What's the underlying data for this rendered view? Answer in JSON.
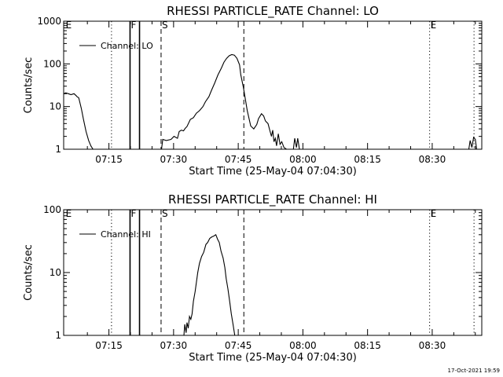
{
  "chart_data": [
    {
      "type": "line",
      "title": "RHESSI PARTICLE_RATE Channel: LO",
      "xlabel": "Start Time (25-May-04 07:04:30)",
      "ylabel": "Counts/sec",
      "yscale": "log",
      "ylim": [
        1,
        1000
      ],
      "ytick_labels": [
        "1",
        "10",
        "100",
        "1000"
      ],
      "ytick_values": [
        1,
        10,
        100,
        1000
      ],
      "xlim_min": [
        4.5,
        101.5
      ],
      "xtick_labels": [
        "07:15",
        "07:30",
        "07:45",
        "08:00",
        "08:15",
        "08:30"
      ],
      "xtick_min": [
        15,
        30,
        45,
        60,
        75,
        90
      ],
      "legend": "Channel: LO",
      "events": [
        {
          "label": "E",
          "min": 4.8,
          "style": "none"
        },
        {
          "label": "",
          "min": 15.6,
          "style": "dotted"
        },
        {
          "label": "F",
          "min": 19.9,
          "style": "solid"
        },
        {
          "label": "",
          "min": 22.1,
          "style": "solid"
        },
        {
          "label": "S",
          "min": 27.1,
          "style": "dashed"
        },
        {
          "label": "",
          "min": 46.3,
          "style": "dashed"
        },
        {
          "label": "E",
          "min": 89.4,
          "style": "dotted"
        },
        {
          "label": "",
          "min": 99.7,
          "style": "dotted"
        }
      ],
      "series": [
        {
          "name": "Channel: LO",
          "segments": [
            {
              "x": [
                4.5,
                5.0,
                5.6,
                6.2,
                6.9,
                7.4,
                7.6,
                8.0,
                8.6,
                9.1,
                9.7,
                10.3,
                10.8,
                11.3
              ],
              "y": [
                20,
                21,
                20,
                19,
                20,
                18,
                17,
                16,
                9,
                5,
                2.6,
                1.6,
                1.2,
                1
              ]
            },
            {
              "x": [
                27.2,
                27.5,
                28.3,
                29.4,
                30.1,
                30.9,
                31.3,
                31.8,
                32.3,
                32.7,
                33.1,
                33.9,
                34.6,
                35.3,
                36.0,
                36.8,
                37.4,
                38.2,
                38.8,
                39.5,
                40.3,
                41.1,
                41.7,
                42.3,
                42.9,
                43.5,
                44.1,
                44.7,
                45.3,
                45.6,
                46.2,
                47.1,
                47.9,
                48.6,
                49.3,
                49.7,
                50.4,
                50.9,
                51.3
              ],
              "y": [
                1,
                1.7,
                1.6,
                1.7,
                2,
                1.8,
                2.6,
                2.8,
                2.7,
                3.1,
                3.4,
                5,
                5.5,
                7,
                8,
                10,
                13,
                17,
                24,
                35,
                55,
                80,
                110,
                135,
                155,
                165,
                160,
                135,
                95,
                55,
                28,
                8,
                3.5,
                3,
                3.8,
                5.2,
                6.8,
                6,
                4.6
              ]
            },
            {
              "x": [
                51.3,
                51.9,
                52.4,
                52.7,
                53.0,
                53.3,
                53.6,
                53.9,
                54.3,
                54.7,
                55.1,
                55.6,
                56.2
              ],
              "y": [
                4.6,
                4,
                2.6,
                2,
                2.8,
                1.5,
                1.8,
                1.2,
                2.3,
                1.3,
                1.5,
                1.1,
                1
              ]
            },
            {
              "x": [
                57.8,
                58.1,
                58.5,
                58.8,
                59.2
              ],
              "y": [
                1,
                1.8,
                1.1,
                1.8,
                1
              ]
            },
            {
              "x": [
                98.5,
                98.8,
                99.2,
                99.6,
                100.0,
                100.3
              ],
              "y": [
                1,
                1.6,
                1.1,
                1.9,
                1.7,
                1
              ]
            }
          ]
        }
      ]
    },
    {
      "type": "line",
      "title": "RHESSI PARTICLE_RATE Channel: HI",
      "xlabel": "Start Time (25-May-04 07:04:30)",
      "ylabel": "Counts/sec",
      "yscale": "log",
      "ylim": [
        1,
        100
      ],
      "ytick_labels": [
        "1",
        "10",
        "100"
      ],
      "ytick_values": [
        1,
        10,
        100
      ],
      "xlim_min": [
        4.5,
        101.5
      ],
      "xtick_labels": [
        "07:15",
        "07:30",
        "07:45",
        "08:00",
        "08:15",
        "08:30"
      ],
      "xtick_min": [
        15,
        30,
        45,
        60,
        75,
        90
      ],
      "legend": "Channel: HI",
      "events": [
        {
          "label": "E",
          "min": 4.8,
          "style": "none"
        },
        {
          "label": "",
          "min": 15.6,
          "style": "dotted"
        },
        {
          "label": "F",
          "min": 19.9,
          "style": "solid"
        },
        {
          "label": "",
          "min": 22.1,
          "style": "solid"
        },
        {
          "label": "S",
          "min": 27.1,
          "style": "dashed"
        },
        {
          "label": "",
          "min": 46.3,
          "style": "dashed"
        },
        {
          "label": "E",
          "min": 89.4,
          "style": "dotted"
        },
        {
          "label": "",
          "min": 99.7,
          "style": "dotted"
        }
      ],
      "series": [
        {
          "name": "Channel: HI",
          "segments": [
            {
              "x": [
                32.4,
                32.6,
                32.9,
                33.1,
                33.4,
                33.7,
                34.0,
                34.3,
                34.6,
                35.0,
                35.3,
                35.6,
                36.0,
                36.5,
                37.0,
                37.5,
                37.9,
                38.4,
                38.9,
                39.3,
                39.8,
                40.2,
                40.6,
                41.0,
                41.5,
                41.9,
                42.2,
                42.6,
                43.0,
                43.4,
                43.8,
                44.2
              ],
              "y": [
                1,
                1.5,
                1.1,
                1.6,
                1.3,
                2,
                1.8,
                2.2,
                3.5,
                5,
                7,
                10,
                14,
                18,
                21,
                28,
                30,
                35,
                37,
                38,
                40,
                34,
                30,
                22,
                17,
                12,
                8,
                5.5,
                3.5,
                2.2,
                1.5,
                1
              ]
            }
          ]
        }
      ]
    }
  ],
  "footer": {
    "timestamp": "17-Oct-2021 19:59"
  }
}
